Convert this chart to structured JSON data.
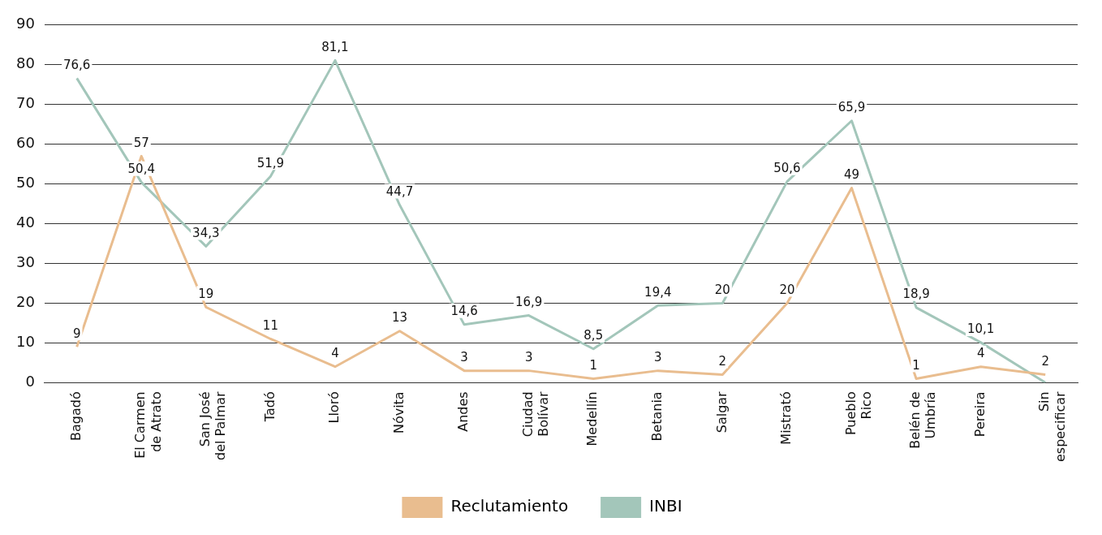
{
  "chart_data": {
    "type": "line",
    "categories": [
      "Bagadó",
      "El Carmen de Atrato",
      "San José del Palmar",
      "Tadó",
      "Lloró",
      "Nóvita",
      "Andes",
      "Ciudad Bolívar",
      "Medellín",
      "Betania",
      "Salgar",
      "Mistrató",
      "Pueblo Rico",
      "Belén de Umbría",
      "Pereira",
      "Sin especificar"
    ],
    "series": [
      {
        "name": "Reclutamiento",
        "color": "#e9bd8f",
        "values": [
          9,
          57,
          19,
          11,
          4,
          13,
          3,
          3,
          1,
          3,
          2,
          20,
          49,
          1,
          4,
          2
        ],
        "value_labels": [
          "9",
          "57",
          "19",
          "11",
          "4",
          "13",
          "3",
          "3",
          "1",
          "3",
          "2",
          "20",
          "49",
          "1",
          "4",
          "2"
        ]
      },
      {
        "name": "INBI",
        "color": "#a3c6ba",
        "values": [
          76.6,
          50.4,
          34.3,
          51.9,
          81.1,
          44.7,
          14.6,
          16.9,
          8.5,
          19.4,
          20,
          50.6,
          65.9,
          18.9,
          10.1,
          0
        ],
        "value_labels": [
          "76,6",
          "50,4",
          "34,3",
          "51,9",
          "81,1",
          "44,7",
          "14,6",
          "16,9",
          "8,5",
          "19,4",
          "20",
          "50,6",
          "65,9",
          "18,9",
          "10,1",
          null
        ]
      }
    ],
    "ylim": [
      0,
      90
    ],
    "yticks": [
      0,
      10,
      20,
      30,
      40,
      50,
      60,
      70,
      80,
      90
    ],
    "grid": "y",
    "legend": "bottom",
    "marker": "none",
    "line_style": "solid"
  }
}
